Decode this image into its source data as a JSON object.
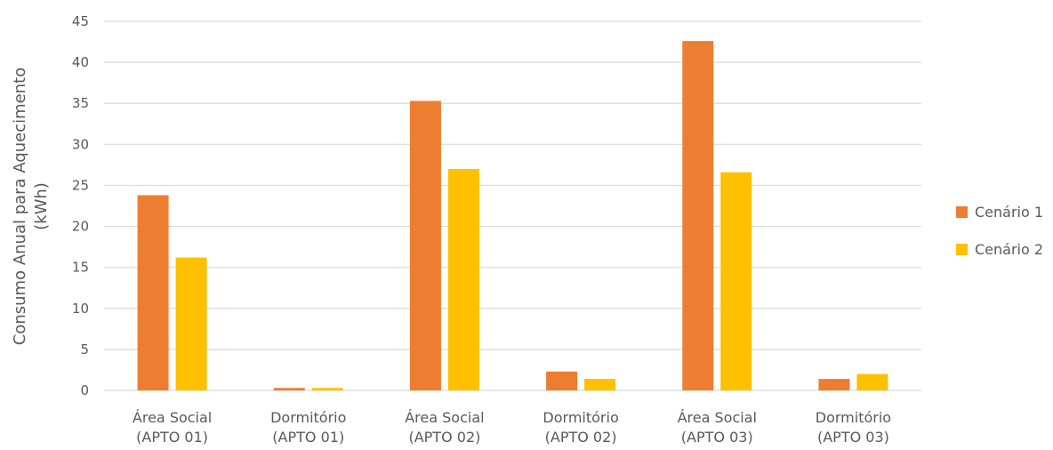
{
  "chart_data": {
    "type": "bar",
    "categories": [
      [
        "Área Social",
        "(APTO 01)"
      ],
      [
        "Dormitório",
        "(APTO 01)"
      ],
      [
        "Área Social",
        "(APTO 02)"
      ],
      [
        "Dormitório",
        "(APTO 02)"
      ],
      [
        "Área Social",
        "(APTO 03)"
      ],
      [
        "Dormitório",
        "(APTO 03)"
      ]
    ],
    "series": [
      {
        "name": "Cenário 1",
        "color": "#ED7D31",
        "values": [
          23.8,
          0.3,
          35.3,
          2.3,
          42.6,
          1.4
        ]
      },
      {
        "name": "Cenário 2",
        "color": "#FFC000",
        "values": [
          16.2,
          0.3,
          27.0,
          1.4,
          26.6,
          2.0
        ]
      }
    ],
    "ylabel": [
      "Consumo Anual para Aquecimento",
      "(kWh)"
    ],
    "ylim": [
      0,
      45
    ],
    "yticks": [
      0,
      5,
      10,
      15,
      20,
      25,
      30,
      35,
      40,
      45
    ],
    "grid": true,
    "legend": "right"
  }
}
